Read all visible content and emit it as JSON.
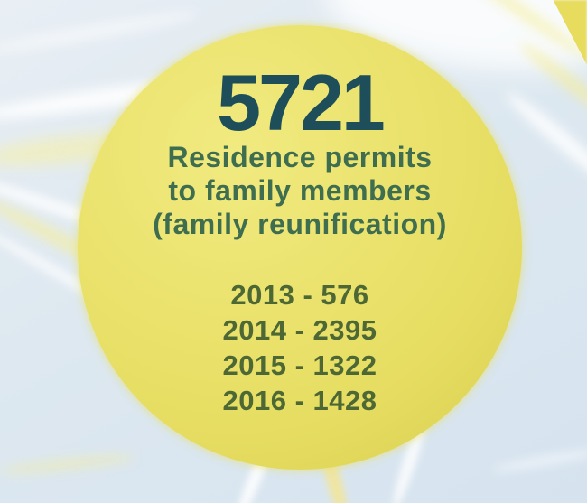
{
  "infographic": {
    "total_value": "5721",
    "caption_lines": [
      "Residence permits",
      "to family members",
      "(family reunification)"
    ],
    "year_lines": [
      "2013 - 576",
      "2014 - 2395",
      "2015 - 1322",
      "2016 - 1428"
    ]
  },
  "colors": {
    "background": "#dde8f0",
    "circle_fill": "#e9e06a",
    "total_text": "#1e4e59",
    "caption_text": "#3e6e4f",
    "years_text": "#4d6834"
  },
  "chart_data": {
    "type": "table",
    "title": "5721",
    "subtitle": "Residence permits to family members (family reunification)",
    "categories": [
      "2013",
      "2014",
      "2015",
      "2016"
    ],
    "values": [
      576,
      2395,
      1322,
      1428
    ],
    "total": 5721,
    "legend_position": "none",
    "grid": false
  }
}
